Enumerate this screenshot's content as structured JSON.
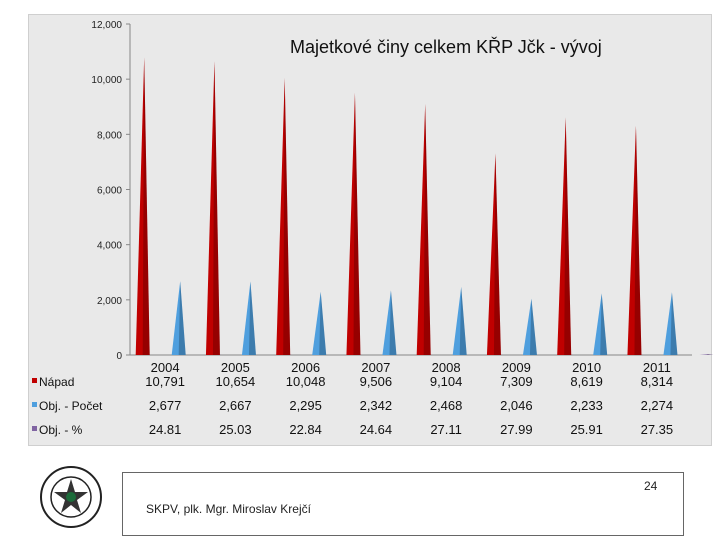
{
  "chart_data": {
    "type": "bar",
    "title": "Majetkové činy celkem KŘP Jčk - vývoj",
    "categories": [
      "2004",
      "2005",
      "2006",
      "2007",
      "2008",
      "2009",
      "2010",
      "2011"
    ],
    "series": [
      {
        "name": "Nápad",
        "values": [
          10791,
          10654,
          10048,
          9506,
          9104,
          7309,
          8619,
          8314
        ],
        "color": "#c00000"
      },
      {
        "name": "Obj. - Počet",
        "values": [
          2677,
          2667,
          2295,
          2342,
          2468,
          2046,
          2233,
          2274
        ],
        "color": "#4f9fde"
      },
      {
        "name": "Obj. - %",
        "values": [
          24.81,
          25.03,
          22.84,
          24.64,
          27.11,
          27.99,
          25.91,
          27.35
        ],
        "color": "#8064a2"
      }
    ],
    "table_values": [
      [
        "10,791",
        "10,654",
        "10,048",
        "9,506",
        "9,104",
        "7,309",
        "8,619",
        "8,314"
      ],
      [
        "2,677",
        "2,667",
        "2,295",
        "2,342",
        "2,468",
        "2,046",
        "2,233",
        "2,274"
      ],
      [
        "24.81",
        "25.03",
        "22.84",
        "24.64",
        "27.11",
        "27.99",
        "25.91",
        "27.35"
      ]
    ],
    "y_ticks": [
      0,
      2000,
      4000,
      6000,
      8000,
      10000,
      12000
    ],
    "y_tick_labels": [
      "0",
      "2,000",
      "4,000",
      "6,000",
      "8,000",
      "10,000",
      "12,000"
    ],
    "ylim": [
      0,
      12000
    ],
    "grid": false,
    "legend": "data-table"
  },
  "footer": {
    "page_number": "24",
    "author": "SKPV, plk. Mgr. Miroslav Krejčí"
  },
  "logo_icon": "police-badge-icon"
}
